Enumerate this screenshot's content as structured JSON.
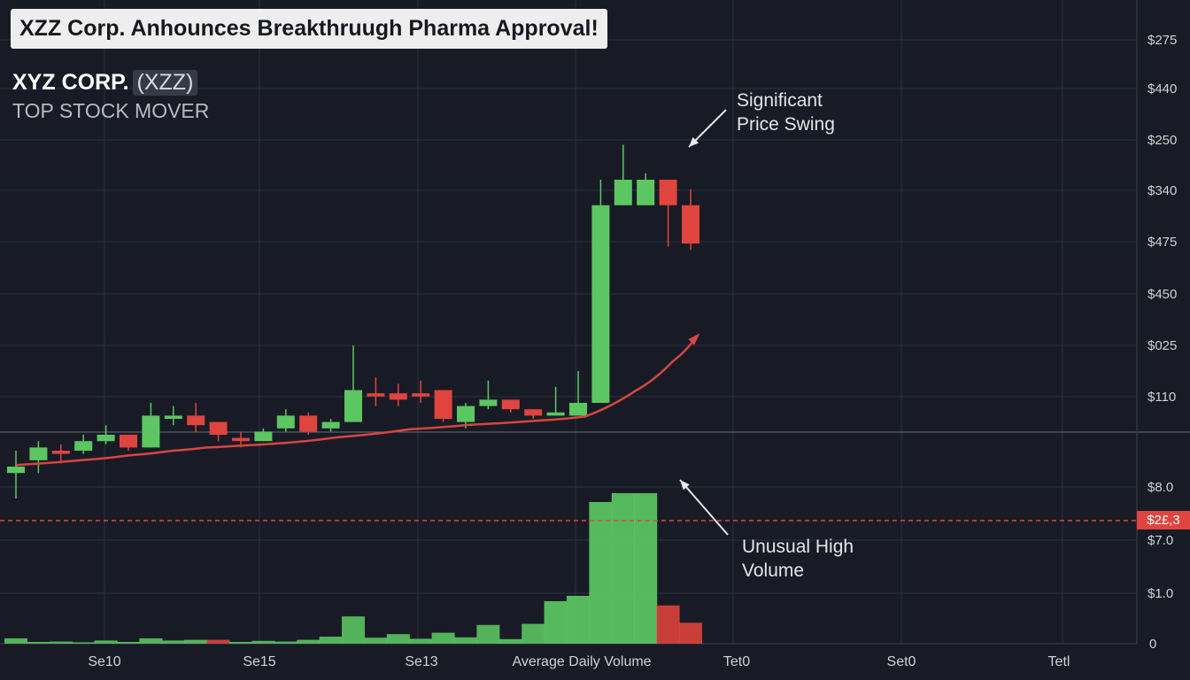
{
  "headline": "XZZ Corp. Anhounces Breakthruugh Pharma Approval!",
  "company": {
    "name": "XYZ CORP.",
    "symbol": "(XZZ)",
    "subtitle": "TOP STOCK MOVER"
  },
  "annotations": {
    "price_swing": [
      "Significant",
      "Price Swing"
    ],
    "volume": [
      "Unusual High",
      "Volume"
    ]
  },
  "current_price_tag": "$2£,3",
  "colors": {
    "background": "#181b25",
    "up": "#5cc762",
    "down": "#e0443e",
    "trend": "#d64541",
    "grid": "#2c3040",
    "axis_text": "#cfd1d6"
  },
  "chart_data": {
    "type": "candlestick",
    "title": "",
    "x_tick_labels": [
      "Se10",
      "Se15",
      "Se13",
      "Average Daily Volume",
      "Tet0",
      "Set0",
      "Tetl"
    ],
    "price_axis_labels": [
      "$275",
      "$440",
      "$250",
      "$340",
      "$475",
      "$450",
      "$025",
      "$110"
    ],
    "volume_axis_labels": [
      "$8.0",
      "$7.0",
      "$1.0",
      "0"
    ],
    "grid": true,
    "price_series": {
      "unit": "approx. label scale",
      "candles": [
        {
          "open": 98,
          "close": 100,
          "high": 105,
          "low": 90
        },
        {
          "open": 102,
          "close": 106,
          "high": 108,
          "low": 98
        },
        {
          "open": 105,
          "close": 104,
          "high": 107,
          "low": 101
        },
        {
          "open": 105,
          "close": 108,
          "high": 110,
          "low": 104
        },
        {
          "open": 108,
          "close": 110,
          "high": 113,
          "low": 107
        },
        {
          "open": 110,
          "close": 106,
          "high": 110,
          "low": 105
        },
        {
          "open": 106,
          "close": 116,
          "high": 120,
          "low": 106
        },
        {
          "open": 115,
          "close": 116,
          "high": 119,
          "low": 113
        },
        {
          "open": 116,
          "close": 113,
          "high": 120,
          "low": 111
        },
        {
          "open": 114,
          "close": 110,
          "high": 114,
          "low": 108
        },
        {
          "open": 109,
          "close": 108,
          "high": 111,
          "low": 106
        },
        {
          "open": 108,
          "close": 111,
          "high": 112,
          "low": 108
        },
        {
          "open": 112,
          "close": 116,
          "high": 118,
          "low": 111
        },
        {
          "open": 116,
          "close": 111,
          "high": 117,
          "low": 110
        },
        {
          "open": 112,
          "close": 114,
          "high": 115,
          "low": 111
        },
        {
          "open": 114,
          "close": 124,
          "high": 138,
          "low": 114
        },
        {
          "open": 123,
          "close": 122,
          "high": 128,
          "low": 119
        },
        {
          "open": 123,
          "close": 121,
          "high": 126,
          "low": 119
        },
        {
          "open": 123,
          "close": 122,
          "high": 127,
          "low": 120
        },
        {
          "open": 124,
          "close": 115,
          "high": 124,
          "low": 114
        },
        {
          "open": 114,
          "close": 119,
          "high": 120,
          "low": 112
        },
        {
          "open": 119,
          "close": 121,
          "high": 127,
          "low": 118
        },
        {
          "open": 121,
          "close": 118,
          "high": 121,
          "low": 117
        },
        {
          "open": 118,
          "close": 116,
          "high": 118,
          "low": 115
        },
        {
          "open": 116,
          "close": 117,
          "high": 125,
          "low": 116
        },
        {
          "open": 116,
          "close": 120,
          "high": 130,
          "low": 116
        },
        {
          "open": 120,
          "close": 182,
          "high": 190,
          "low": 120
        },
        {
          "open": 182,
          "close": 190,
          "high": 201,
          "low": 182
        },
        {
          "open": 182,
          "close": 190,
          "high": 192,
          "low": 182
        },
        {
          "open": 190,
          "close": 182,
          "high": 190,
          "low": 169
        },
        {
          "open": 182,
          "close": 170,
          "high": 187,
          "low": 168
        }
      ]
    },
    "trend_line": [
      [
        0,
        100.5
      ],
      [
        2.9,
        102
      ],
      [
        5.0,
        103.5
      ],
      [
        7.0,
        105
      ],
      [
        8.5,
        106
      ],
      [
        10,
        106.6
      ],
      [
        11.9,
        107.4
      ],
      [
        14.3,
        109.2
      ],
      [
        17.5,
        111.7
      ],
      [
        20.1,
        113.1
      ],
      [
        23.4,
        114.5
      ],
      [
        25.3,
        115.7
      ],
      [
        27.6,
        124
      ],
      [
        29.2,
        133
      ],
      [
        30.3,
        141
      ]
    ],
    "volume_series": {
      "unit": "relative",
      "values": [
        15,
        5,
        6,
        4,
        9,
        5,
        15,
        9,
        11,
        11,
        5,
        8,
        6,
        11,
        20,
        77,
        17,
        27,
        14,
        31,
        18,
        53,
        13,
        56,
        120,
        135,
        400,
        425,
        425,
        108,
        59
      ],
      "colors": [
        "up",
        "up",
        "up",
        "up",
        "up",
        "up",
        "up",
        "up",
        "up",
        "down",
        "up",
        "up",
        "up",
        "up",
        "up",
        "up",
        "up",
        "up",
        "up",
        "up",
        "up",
        "up",
        "up",
        "up",
        "up",
        "up",
        "up",
        "up",
        "up",
        "down",
        "down"
      ]
    }
  }
}
